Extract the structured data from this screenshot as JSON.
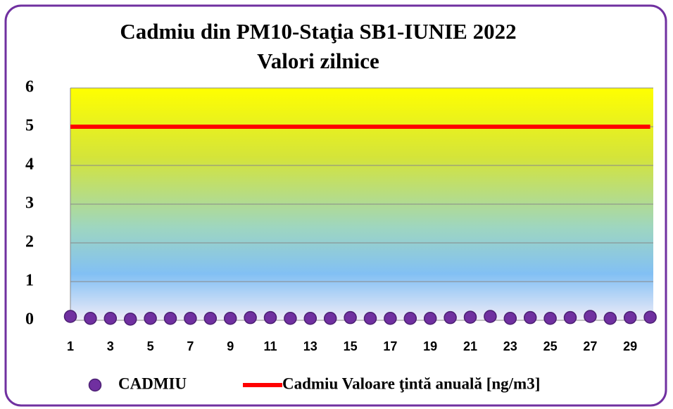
{
  "chart_data": {
    "type": "line",
    "title": "Cadmiu din PM10-Staţia SB1-IUNIE  2022",
    "subtitle": "Valori zilnice",
    "categories": [
      "1",
      null,
      "3",
      null,
      "5",
      null,
      "7",
      null,
      "9",
      null,
      "11",
      null,
      "13",
      null,
      "15",
      null,
      "17",
      null,
      "19",
      null,
      "21",
      null,
      "23",
      null,
      "25",
      null,
      "27",
      null,
      "29",
      null
    ],
    "series": [
      {
        "name": "CADMIU",
        "type": "scatter",
        "color": "#7030a0",
        "values": [
          0.1,
          0.05,
          0.05,
          0.03,
          0.05,
          0.05,
          0.05,
          0.05,
          0.05,
          0.07,
          0.07,
          0.05,
          0.05,
          0.05,
          0.07,
          0.05,
          0.05,
          0.05,
          0.05,
          0.07,
          0.08,
          0.1,
          0.05,
          0.07,
          0.05,
          0.07,
          0.1,
          0.05,
          0.07,
          0.08
        ]
      },
      {
        "name": "Cadmiu Valoare ţintă anuală [ng/m3]",
        "type": "line",
        "color": "#ff0000",
        "values": [
          5,
          5,
          5,
          5,
          5,
          5,
          5,
          5,
          5,
          5,
          5,
          5,
          5,
          5,
          5,
          5,
          5,
          5,
          5,
          5,
          5,
          5,
          5,
          5,
          5,
          5,
          5,
          5,
          5,
          5
        ]
      }
    ],
    "ylim": [
      0,
      6
    ],
    "yticks": [
      0,
      1,
      2,
      3,
      4,
      5,
      6
    ],
    "grid": true,
    "legend": "bottom"
  }
}
